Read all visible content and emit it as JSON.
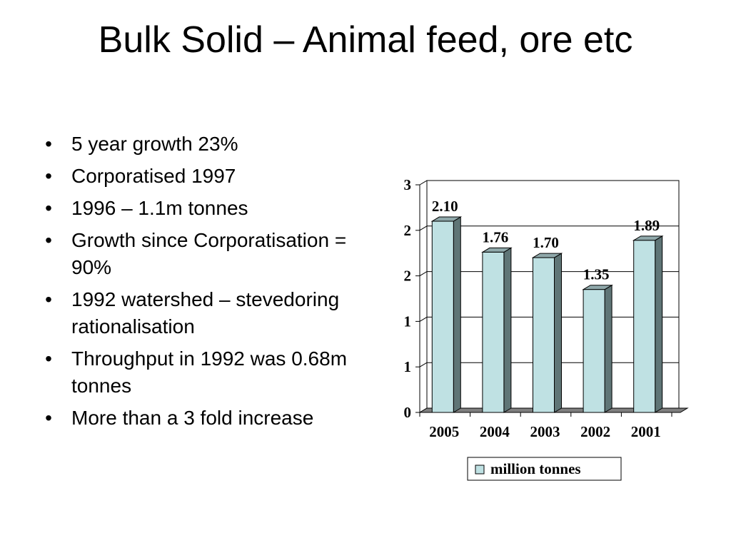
{
  "slide": {
    "title": "Bulk Solid – Animal feed, ore etc",
    "bullets": [
      "5 year growth 23%",
      "Corporatised 1997",
      "1996 – 1.1m tonnes",
      "Growth since Corporatisation = 90%",
      "1992 watershed – stevedoring rationalisation",
      "Throughput in 1992 was 0.68m tonnes",
      "More than a 3 fold increase"
    ],
    "bullet_glyph": "•"
  },
  "chart_data": {
    "type": "bar",
    "categories": [
      "2005",
      "2004",
      "2003",
      "2002",
      "2001"
    ],
    "series": [
      {
        "name": "million tonnes",
        "values": [
          2.1,
          1.76,
          1.7,
          1.35,
          1.89
        ],
        "labels": [
          "2.10",
          "1.76",
          "1.70",
          "1.35",
          "1.89"
        ]
      }
    ],
    "ylim": [
      0,
      2.5
    ],
    "yticks": [
      0,
      0.5,
      1,
      1.5,
      2,
      2.5
    ],
    "yticklabels": [
      "0",
      "1",
      "1",
      "2",
      "2",
      "3"
    ],
    "grid": true,
    "three_d": true,
    "legend_position": "bottom",
    "colors": {
      "bar_front": "#bfe1e3",
      "bar_side": "#5f7576",
      "bar_top": "#8fa8aa",
      "floor": "#7f7f7f",
      "axis": "#000000",
      "grid": "#000000"
    }
  }
}
